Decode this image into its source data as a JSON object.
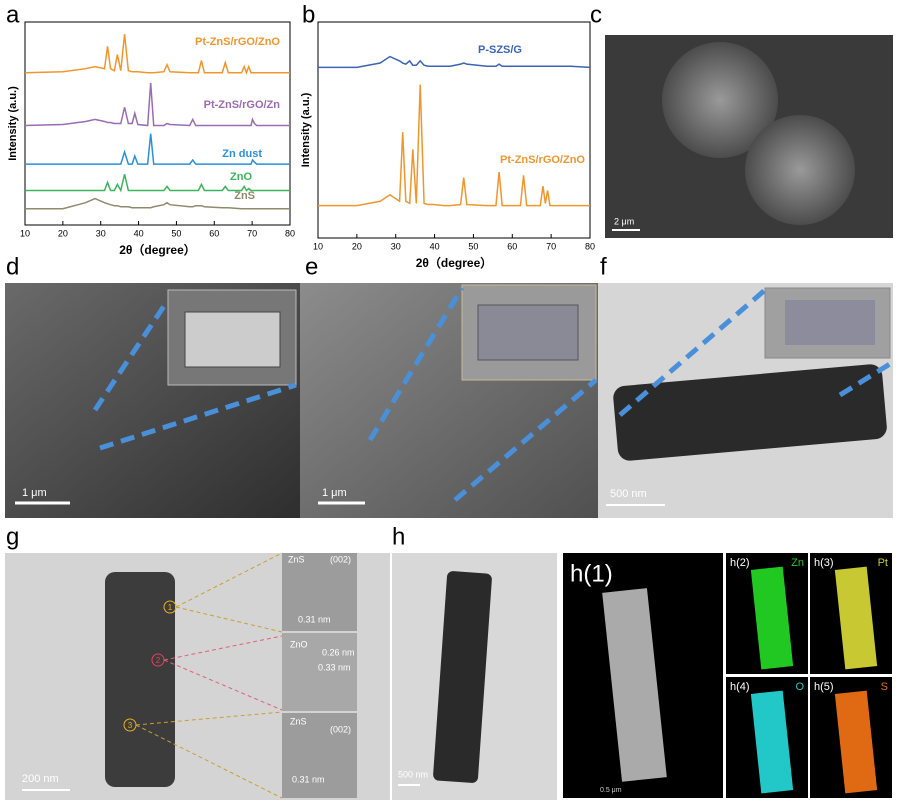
{
  "chart_data": [
    {
      "type": "line",
      "panel": "a",
      "xlabel": "2θ（degree）",
      "ylabel": "Intensity (a.u.)",
      "xlim": [
        10,
        80
      ],
      "xticks": [
        10,
        20,
        30,
        40,
        50,
        60,
        70,
        80
      ],
      "ylim": [
        0,
        100
      ],
      "x": [
        10,
        20,
        26,
        28.5,
        31,
        31.8,
        32.6,
        33.6,
        34.4,
        35.3,
        36.3,
        37.3,
        38.3,
        39,
        39.8,
        42.4,
        43.2,
        44,
        46.7,
        47.5,
        48.3,
        53.5,
        54.3,
        55.1,
        55.8,
        56.6,
        57.4,
        62.1,
        62.9,
        63.7,
        67.2,
        67.9,
        68.5,
        69.1,
        69.7,
        70.1,
        70.6,
        71.2,
        75,
        80
      ],
      "series": [
        {
          "name": "Pt-ZnS/rGO/ZnO",
          "color": "#f0962e",
          "values": [
            75,
            75.5,
            77,
            78,
            77,
            88,
            77,
            76,
            84,
            76,
            94,
            76,
            75.5,
            75.5,
            75.5,
            75,
            75,
            75,
            75.5,
            79,
            75.5,
            75,
            75,
            75,
            75,
            81,
            75,
            75,
            80,
            75,
            75,
            78,
            75,
            78,
            75,
            75,
            75,
            75,
            75,
            75
          ]
        },
        {
          "name": "Pt-ZnS/rGO/Zn",
          "color": "#9b6bb5",
          "values": [
            49,
            49.5,
            51,
            52,
            51,
            50.5,
            50.5,
            50,
            50,
            50,
            58,
            50,
            50,
            55,
            49.5,
            49,
            70,
            49,
            49,
            50,
            49.5,
            49,
            52,
            49,
            49,
            49,
            49,
            49,
            49,
            49,
            49,
            49,
            49,
            49,
            49,
            52,
            50,
            49,
            49,
            49
          ]
        },
        {
          "name": "Zn dust",
          "color": "#2b8fd9",
          "values": [
            30,
            30,
            30,
            30,
            30,
            30,
            30,
            30,
            30,
            30,
            36,
            30,
            30,
            34,
            30,
            30,
            45,
            30,
            30,
            30,
            30,
            30,
            32,
            30,
            30,
            30,
            30,
            30,
            30,
            30,
            30,
            30,
            30,
            30,
            30,
            32,
            31,
            30,
            30,
            30
          ]
        },
        {
          "name": "ZnO",
          "color": "#3cb55a",
          "values": [
            17,
            17,
            17,
            17,
            17,
            21,
            17,
            17,
            20,
            17,
            25,
            17,
            17,
            17,
            17,
            17,
            17,
            17,
            17,
            19,
            17,
            17,
            17,
            17,
            17,
            20,
            17,
            17,
            19,
            17,
            17,
            19,
            17,
            18,
            17,
            17,
            17,
            17,
            17,
            17
          ]
        },
        {
          "name": "ZnS",
          "color": "#8c8c6e",
          "values": [
            8,
            8,
            11,
            13,
            11,
            10.5,
            10,
            9.5,
            9.5,
            9,
            9,
            9,
            8.5,
            8.5,
            8.5,
            8.5,
            8.5,
            9,
            10,
            11,
            10,
            9,
            9,
            9.5,
            9.5,
            9.5,
            9,
            8.5,
            8.5,
            8.5,
            8,
            8,
            8,
            8,
            8,
            8,
            8,
            8,
            8,
            8
          ]
        }
      ]
    },
    {
      "type": "line",
      "panel": "b",
      "xlabel": "2θ（degree）",
      "ylabel": "Intensity (a.u.)",
      "xlim": [
        10,
        80
      ],
      "xticks": [
        10,
        20,
        30,
        40,
        50,
        60,
        70,
        80
      ],
      "ylim": [
        0,
        100
      ],
      "x": [
        10,
        20,
        26,
        28.5,
        31,
        31.8,
        32.6,
        33.6,
        34.4,
        35.3,
        36.3,
        37.3,
        38.3,
        39,
        39.8,
        42.4,
        43.2,
        44,
        46.7,
        47.5,
        48.3,
        53.5,
        54.3,
        55.1,
        55.8,
        56.6,
        57.4,
        62.1,
        62.9,
        63.7,
        67.2,
        67.9,
        68.5,
        69.1,
        69.7,
        70.1,
        70.6,
        71.2,
        75,
        80
      ],
      "series": [
        {
          "name": "P-SZS/G",
          "color": "#3c64b4",
          "values": [
            79,
            79,
            81,
            84,
            82,
            81,
            80.5,
            82,
            80,
            80,
            82,
            80,
            79.5,
            79.5,
            79.5,
            79.5,
            79.5,
            79.5,
            80.5,
            81,
            80.5,
            79.5,
            79.5,
            79.5,
            79.5,
            80.5,
            79.5,
            79.5,
            79.5,
            79.5,
            79.5,
            79.5,
            79.5,
            79.5,
            79.5,
            79.5,
            79.5,
            79.5,
            79.5,
            79
          ]
        },
        {
          "name": "Pt-ZnS/rGO/ZnO",
          "color": "#f0962e",
          "values": [
            15,
            15,
            17,
            20,
            17,
            49,
            17,
            16,
            41,
            16,
            71,
            16,
            15.5,
            15.5,
            15.5,
            15,
            15,
            15,
            15.5,
            28,
            15.5,
            15,
            15,
            15,
            15,
            30.5,
            15,
            15,
            29,
            15,
            15,
            24,
            16,
            22,
            15,
            15,
            15,
            15,
            15,
            15
          ]
        }
      ]
    }
  ],
  "panels": {
    "c": {
      "letter": "c",
      "scale": "2 μm"
    },
    "d": {
      "letter": "d",
      "scale": "1 μm"
    },
    "e": {
      "letter": "e",
      "scale": "1 μm"
    },
    "f": {
      "letter": "f",
      "scale": "500 nm"
    },
    "g": {
      "letter": "g",
      "scale": "200 nm",
      "markers": [
        "1",
        "2",
        "3"
      ],
      "inset1": [
        "ZnS",
        "(002)",
        "0.31 nm"
      ],
      "inset2": [
        "ZnO",
        "0.26 nm",
        "0.33 nm"
      ],
      "inset3": [
        "ZnS",
        "(002)",
        "0.31 nm"
      ]
    },
    "h": {
      "letter": "h",
      "scale": "500 nm"
    },
    "h1": {
      "label": "h(1)",
      "scale": "0.5 μm"
    },
    "maps": [
      {
        "label": "h(2)",
        "element": "Zn"
      },
      {
        "label": "h(3)",
        "element": "Pt"
      },
      {
        "label": "h(4)",
        "element": "O"
      },
      {
        "label": "h(5)",
        "element": "S"
      }
    ]
  }
}
